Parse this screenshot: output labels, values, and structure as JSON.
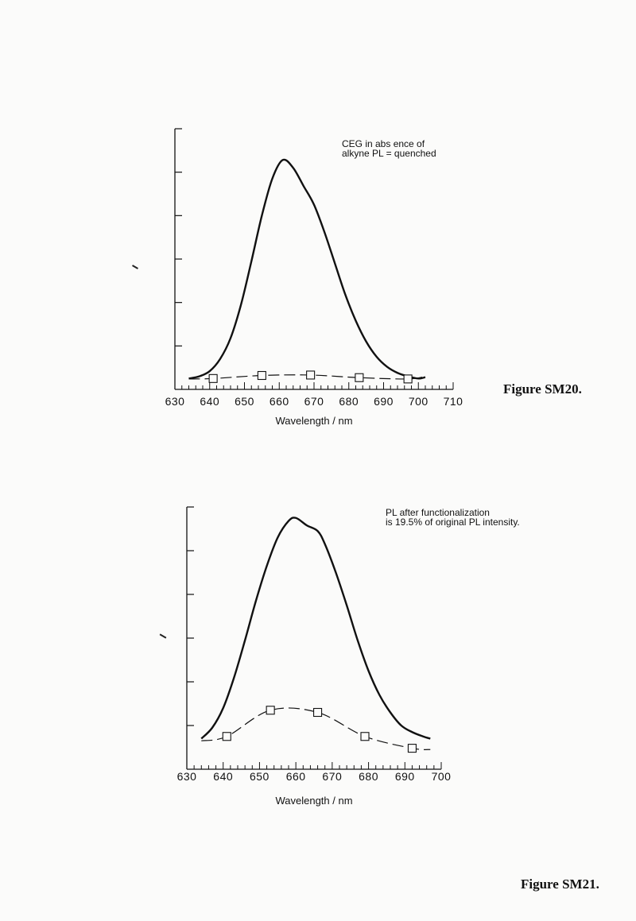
{
  "figures": [
    {
      "caption": "Figure SM20."
    },
    {
      "caption": "Figure SM21."
    }
  ],
  "chart_data": [
    {
      "type": "line",
      "annotation": [
        "CEG in abs ence of",
        "alkyne PL = quenched"
      ],
      "xlabel": "Wavelength / nm",
      "ylabel": "",
      "xlim": [
        630,
        710
      ],
      "ylim": [
        0,
        6
      ],
      "x_ticks": [
        630,
        640,
        650,
        660,
        670,
        680,
        690,
        700,
        710
      ],
      "y_ticks": [
        1,
        2,
        3,
        4,
        5,
        6
      ],
      "grid": false,
      "series": [
        {
          "style": "solid",
          "x": [
            634,
            637,
            640,
            643,
            646,
            649,
            652,
            655,
            658,
            661,
            664,
            667,
            670,
            673,
            676,
            679,
            682,
            685,
            688,
            691,
            694,
            697,
            700,
            702
          ],
          "y": [
            0.25,
            0.3,
            0.42,
            0.7,
            1.18,
            1.95,
            2.95,
            4.0,
            4.85,
            5.28,
            5.1,
            4.68,
            4.25,
            3.62,
            2.9,
            2.18,
            1.58,
            1.1,
            0.75,
            0.52,
            0.38,
            0.3,
            0.25,
            0.28
          ]
        },
        {
          "style": "dashed",
          "marker": "square",
          "x": [
            634,
            641,
            655,
            669,
            683,
            697,
            702
          ],
          "y": [
            0.24,
            0.25,
            0.32,
            0.33,
            0.27,
            0.24,
            0.3
          ]
        }
      ]
    },
    {
      "type": "line",
      "annotation": [
        "PL after functionalization",
        "is 19.5% of original PL intensity."
      ],
      "xlabel": "Wavelength / nm",
      "ylabel": "",
      "xlim": [
        630,
        700
      ],
      "ylim": [
        0,
        6
      ],
      "x_ticks": [
        630,
        640,
        650,
        660,
        670,
        680,
        690,
        700
      ],
      "y_ticks": [
        1,
        2,
        3,
        4,
        5,
        6
      ],
      "grid": false,
      "series": [
        {
          "style": "solid",
          "x": [
            634,
            637,
            640,
            643,
            646,
            649,
            652,
            655,
            658,
            660,
            663,
            666,
            668,
            671,
            674,
            677,
            680,
            683,
            686,
            689,
            692,
            695,
            697
          ],
          "y": [
            0.7,
            0.95,
            1.4,
            2.1,
            2.95,
            3.85,
            4.65,
            5.3,
            5.68,
            5.75,
            5.58,
            5.45,
            5.15,
            4.5,
            3.75,
            2.95,
            2.25,
            1.7,
            1.3,
            1.0,
            0.85,
            0.75,
            0.7
          ]
        },
        {
          "style": "dashed",
          "marker": "square",
          "x": [
            634,
            641,
            653,
            666,
            679,
            692,
            697
          ],
          "y": [
            0.65,
            0.75,
            1.35,
            1.3,
            0.75,
            0.48,
            0.45
          ]
        }
      ]
    }
  ]
}
